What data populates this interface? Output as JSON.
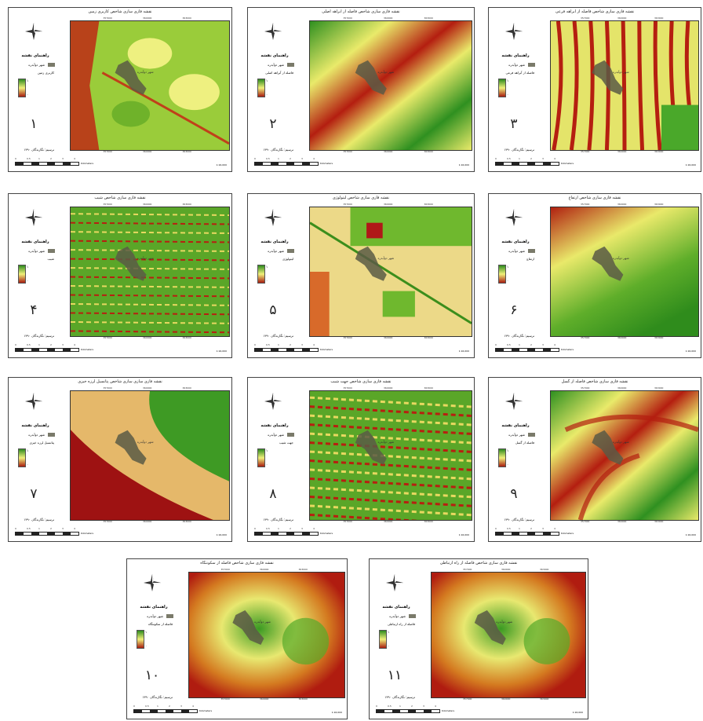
{
  "legend": {
    "title": "راهنمای نقشه",
    "city": "شهر دوآبدره",
    "max": "۱",
    "min": "۰",
    "min_alt": "۰/۰۵",
    "author": "ترسیم: نگارندگان ۱۳۹۰",
    "scale_ticks": [
      "0",
      "0.5",
      "1",
      "2",
      "3",
      "4"
    ],
    "scale_unit": "Kilometers",
    "ratio": "1:16,000",
    "ticks_top": [
      "357000",
      "360000",
      "363000"
    ],
    "ticks_side": [
      "3975000",
      "3978000"
    ],
    "city_label_on_map": "شهر دوآبدره"
  },
  "panels": [
    {
      "title": "نقشه فازی سازی شاخص کاربری زمین",
      "factor": "کاربری زمین",
      "number": "۱"
    },
    {
      "title": "نقشه فازی سازی شاخص فاصله از آبراهه اصلی",
      "factor": "فاصله از آبراهه اصلی",
      "number": "۲"
    },
    {
      "title": "نقشه فازی سازی شاخص فاصله از آبراهه فرعی",
      "factor": "فاصله از آبراهه فرعی",
      "number": "۳"
    },
    {
      "title": "نقشه فازی سازی شاخص شیب",
      "factor": "شیب",
      "number": "۴"
    },
    {
      "title": "نقشه فازی سازی شاخص لیتولوژی",
      "factor": "لیتولوژی",
      "number": "۵"
    },
    {
      "title": "نقشه فازی سازی شاخص ارتفاع",
      "factor": "ارتفاع",
      "number": "۶"
    },
    {
      "title": "نقشه فازی سازی سازی شاخص پتانسیل لرزه خیزی",
      "factor": "پتانسیل لرزه خیزی",
      "number": "۷"
    },
    {
      "title": "نقشه فازی سازی شاخص جهت شیب",
      "factor": "جهت شیب",
      "number": "۸"
    },
    {
      "title": "نقشه فازی سازی شاخص فاصله از گسل",
      "factor": "فاصله از گسل",
      "number": "۹"
    },
    {
      "title": "نقشه فازی سازی شاخص فاصله از سکونتگاه",
      "factor": "فاصله از سکونتگاه",
      "number": "۱۰"
    },
    {
      "title": "نقشه فازی سازی شاخص فاصله از راه ارتباطی",
      "factor": "فاصله از راه ارتباطی",
      "number": "۱۱"
    }
  ],
  "colors": {
    "high": "#2e8b1e",
    "mid": "#f0f07a",
    "low": "#a81c10",
    "city": "#6f6a55"
  }
}
